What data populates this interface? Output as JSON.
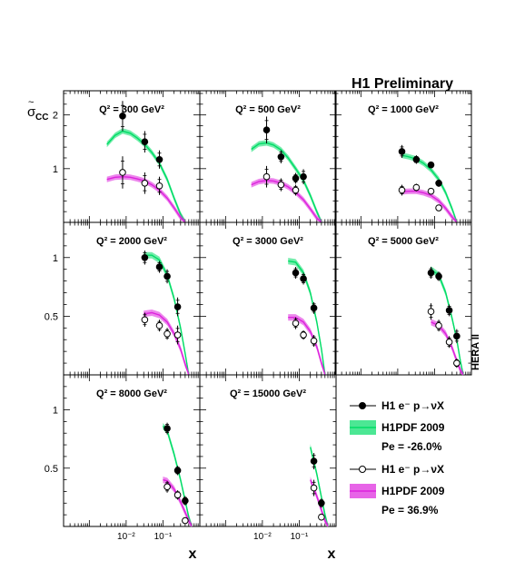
{
  "figure": {
    "banner": "H1 Preliminary",
    "side_label": "HERA II",
    "ylabel_main": "σ",
    "ylabel_tilde": "~",
    "ylabel_sub": "CC",
    "xlabel": "x"
  },
  "legend": {
    "items": [
      {
        "type": "data",
        "style": "filled",
        "text": "H1 e⁻ p→νX"
      },
      {
        "type": "band",
        "color": "#00dd66",
        "text": "H1PDF 2009"
      },
      {
        "type": "note",
        "text": "Pe = -26.0%"
      },
      {
        "type": "data",
        "style": "open",
        "text": "H1 e⁻ p→νX"
      },
      {
        "type": "band",
        "color": "#dd22dd",
        "text": "H1PDF 2009"
      },
      {
        "type": "note",
        "text": "Pe = 36.9%"
      }
    ]
  },
  "chart_data": {
    "type": "scatter",
    "xscale": "log",
    "x_range": [
      0.0002,
      1
    ],
    "y_ranges": {
      "row1": [
        0,
        2.45
      ],
      "row2": [
        0,
        1.3
      ],
      "row3": [
        0,
        1.3
      ]
    },
    "x_tick_labels": [
      "10⁻²",
      "10⁻¹",
      "10⁻²",
      "10⁻¹"
    ],
    "y_tick_labels": {
      "row1": [
        "1",
        "2"
      ],
      "row2": [
        "0.5",
        "1"
      ],
      "row3": [
        "0.5",
        "1"
      ]
    },
    "colors": {
      "neg": "#00dd66",
      "pos": "#dd22dd"
    },
    "panels": [
      {
        "label": "Q² = 300 GeV²",
        "row": 0,
        "col": 0,
        "neg_points": [
          [
            0.008,
            1.98,
            0.28
          ],
          [
            0.032,
            1.5,
            0.2
          ],
          [
            0.08,
            1.17,
            0.17
          ]
        ],
        "pos_points": [
          [
            0.008,
            0.93,
            0.3
          ],
          [
            0.032,
            0.73,
            0.2
          ],
          [
            0.08,
            0.68,
            0.17
          ]
        ],
        "neg_curve": [
          [
            0.003,
            1.45
          ],
          [
            0.005,
            1.62
          ],
          [
            0.008,
            1.7
          ],
          [
            0.013,
            1.66
          ],
          [
            0.02,
            1.57
          ],
          [
            0.032,
            1.45
          ],
          [
            0.05,
            1.3
          ],
          [
            0.08,
            1.1
          ],
          [
            0.13,
            0.8
          ],
          [
            0.2,
            0.45
          ],
          [
            0.3,
            0.15
          ],
          [
            0.4,
            0.0
          ]
        ],
        "pos_curve": [
          [
            0.003,
            0.8
          ],
          [
            0.005,
            0.84
          ],
          [
            0.008,
            0.85
          ],
          [
            0.013,
            0.84
          ],
          [
            0.02,
            0.81
          ],
          [
            0.032,
            0.77
          ],
          [
            0.05,
            0.7
          ],
          [
            0.08,
            0.6
          ],
          [
            0.13,
            0.45
          ],
          [
            0.2,
            0.27
          ],
          [
            0.3,
            0.09
          ],
          [
            0.4,
            0.0
          ]
        ]
      },
      {
        "label": "Q² = 500 GeV²",
        "row": 0,
        "col": 1,
        "neg_points": [
          [
            0.013,
            1.72,
            0.25
          ],
          [
            0.032,
            1.22,
            0.12
          ],
          [
            0.08,
            0.82,
            0.1
          ],
          [
            0.13,
            0.85,
            0.14
          ]
        ],
        "pos_points": [
          [
            0.013,
            0.85,
            0.2
          ],
          [
            0.032,
            0.7,
            0.12
          ],
          [
            0.08,
            0.6,
            0.1
          ]
        ],
        "neg_curve": [
          [
            0.005,
            1.36
          ],
          [
            0.008,
            1.46
          ],
          [
            0.013,
            1.48
          ],
          [
            0.02,
            1.44
          ],
          [
            0.032,
            1.35
          ],
          [
            0.05,
            1.2
          ],
          [
            0.08,
            1.0
          ],
          [
            0.13,
            0.78
          ],
          [
            0.2,
            0.5
          ],
          [
            0.3,
            0.2
          ],
          [
            0.4,
            0.0
          ]
        ],
        "pos_curve": [
          [
            0.005,
            0.7
          ],
          [
            0.008,
            0.76
          ],
          [
            0.013,
            0.78
          ],
          [
            0.02,
            0.77
          ],
          [
            0.032,
            0.73
          ],
          [
            0.05,
            0.66
          ],
          [
            0.08,
            0.56
          ],
          [
            0.13,
            0.42
          ],
          [
            0.2,
            0.25
          ],
          [
            0.3,
            0.08
          ],
          [
            0.4,
            0.0
          ]
        ]
      },
      {
        "label": "Q² = 1000 GeV²",
        "row": 0,
        "col": 2,
        "neg_points": [
          [
            0.013,
            1.32,
            0.12
          ],
          [
            0.032,
            1.17,
            0.08
          ],
          [
            0.08,
            1.07,
            0.06
          ],
          [
            0.13,
            0.73,
            0.07
          ]
        ],
        "pos_points": [
          [
            0.013,
            0.6,
            0.1
          ],
          [
            0.032,
            0.65,
            0.07
          ],
          [
            0.08,
            0.58,
            0.05
          ],
          [
            0.13,
            0.27,
            0.05
          ]
        ],
        "neg_curve": [
          [
            0.013,
            1.25
          ],
          [
            0.02,
            1.22
          ],
          [
            0.032,
            1.18
          ],
          [
            0.05,
            1.1
          ],
          [
            0.08,
            0.98
          ],
          [
            0.13,
            0.8
          ],
          [
            0.2,
            0.55
          ],
          [
            0.3,
            0.25
          ],
          [
            0.4,
            0.0
          ]
        ],
        "pos_curve": [
          [
            0.013,
            0.57
          ],
          [
            0.02,
            0.58
          ],
          [
            0.032,
            0.58
          ],
          [
            0.05,
            0.55
          ],
          [
            0.08,
            0.5
          ],
          [
            0.13,
            0.4
          ],
          [
            0.2,
            0.26
          ],
          [
            0.3,
            0.1
          ],
          [
            0.4,
            0.0
          ]
        ]
      },
      {
        "label": "Q² = 2000 GeV²",
        "row": 1,
        "col": 0,
        "neg_points": [
          [
            0.032,
            1.0,
            0.06
          ],
          [
            0.08,
            0.92,
            0.05
          ],
          [
            0.13,
            0.84,
            0.06
          ],
          [
            0.25,
            0.58,
            0.08
          ]
        ],
        "pos_points": [
          [
            0.032,
            0.47,
            0.06
          ],
          [
            0.08,
            0.42,
            0.05
          ],
          [
            0.13,
            0.35,
            0.05
          ],
          [
            0.25,
            0.34,
            0.08
          ]
        ],
        "neg_curve": [
          [
            0.03,
            1.02
          ],
          [
            0.05,
            1.02
          ],
          [
            0.08,
            0.98
          ],
          [
            0.13,
            0.85
          ],
          [
            0.2,
            0.65
          ],
          [
            0.3,
            0.4
          ],
          [
            0.4,
            0.18
          ],
          [
            0.5,
            0.0
          ]
        ],
        "pos_curve": [
          [
            0.03,
            0.52
          ],
          [
            0.05,
            0.53
          ],
          [
            0.08,
            0.51
          ],
          [
            0.13,
            0.45
          ],
          [
            0.2,
            0.35
          ],
          [
            0.3,
            0.22
          ],
          [
            0.4,
            0.09
          ],
          [
            0.5,
            0.0
          ]
        ]
      },
      {
        "label": "Q² = 3000 GeV²",
        "row": 1,
        "col": 1,
        "neg_points": [
          [
            0.08,
            0.87,
            0.05
          ],
          [
            0.13,
            0.82,
            0.05
          ],
          [
            0.25,
            0.57,
            0.05
          ]
        ],
        "pos_points": [
          [
            0.08,
            0.44,
            0.05
          ],
          [
            0.13,
            0.34,
            0.04
          ],
          [
            0.25,
            0.29,
            0.05
          ]
        ],
        "neg_curve": [
          [
            0.05,
            0.97
          ],
          [
            0.08,
            0.96
          ],
          [
            0.13,
            0.87
          ],
          [
            0.2,
            0.7
          ],
          [
            0.3,
            0.45
          ],
          [
            0.4,
            0.22
          ],
          [
            0.5,
            0.0
          ]
        ],
        "pos_curve": [
          [
            0.05,
            0.49
          ],
          [
            0.08,
            0.49
          ],
          [
            0.13,
            0.45
          ],
          [
            0.2,
            0.37
          ],
          [
            0.3,
            0.24
          ],
          [
            0.4,
            0.1
          ],
          [
            0.5,
            0.0
          ]
        ]
      },
      {
        "label": "Q² = 5000 GeV²",
        "row": 1,
        "col": 2,
        "neg_points": [
          [
            0.08,
            0.87,
            0.05
          ],
          [
            0.13,
            0.84,
            0.04
          ],
          [
            0.25,
            0.55,
            0.05
          ],
          [
            0.4,
            0.33,
            0.06
          ]
        ],
        "pos_points": [
          [
            0.08,
            0.54,
            0.07
          ],
          [
            0.13,
            0.42,
            0.05
          ],
          [
            0.25,
            0.28,
            0.05
          ],
          [
            0.4,
            0.1,
            0.04
          ]
        ],
        "neg_curve": [
          [
            0.08,
            0.9
          ],
          [
            0.13,
            0.85
          ],
          [
            0.2,
            0.7
          ],
          [
            0.3,
            0.48
          ],
          [
            0.4,
            0.3
          ],
          [
            0.5,
            0.12
          ],
          [
            0.6,
            0.0
          ]
        ],
        "pos_curve": [
          [
            0.08,
            0.45
          ],
          [
            0.13,
            0.42
          ],
          [
            0.2,
            0.35
          ],
          [
            0.3,
            0.23
          ],
          [
            0.4,
            0.12
          ],
          [
            0.5,
            0.04
          ],
          [
            0.6,
            0.0
          ]
        ]
      },
      {
        "label": "Q² = 8000 GeV²",
        "row": 2,
        "col": 0,
        "neg_points": [
          [
            0.13,
            0.84,
            0.05
          ],
          [
            0.25,
            0.48,
            0.04
          ],
          [
            0.4,
            0.22,
            0.04
          ]
        ],
        "pos_points": [
          [
            0.13,
            0.34,
            0.05
          ],
          [
            0.25,
            0.27,
            0.04
          ],
          [
            0.4,
            0.05,
            0.02
          ]
        ],
        "neg_curve": [
          [
            0.1,
            0.86
          ],
          [
            0.13,
            0.82
          ],
          [
            0.2,
            0.62
          ],
          [
            0.3,
            0.4
          ],
          [
            0.4,
            0.22
          ],
          [
            0.5,
            0.08
          ],
          [
            0.6,
            0.0
          ]
        ],
        "pos_curve": [
          [
            0.1,
            0.4
          ],
          [
            0.13,
            0.39
          ],
          [
            0.2,
            0.32
          ],
          [
            0.3,
            0.21
          ],
          [
            0.4,
            0.12
          ],
          [
            0.5,
            0.05
          ],
          [
            0.6,
            0.0
          ]
        ]
      },
      {
        "label": "Q² = 15000 GeV²",
        "row": 2,
        "col": 1,
        "neg_points": [
          [
            0.25,
            0.56,
            0.07
          ],
          [
            0.4,
            0.2,
            0.04
          ]
        ],
        "pos_points": [
          [
            0.25,
            0.33,
            0.07
          ],
          [
            0.4,
            0.08,
            0.03
          ]
        ],
        "neg_curve": [
          [
            0.2,
            0.68
          ],
          [
            0.3,
            0.45
          ],
          [
            0.4,
            0.25
          ],
          [
            0.5,
            0.1
          ],
          [
            0.6,
            0.0
          ]
        ],
        "pos_curve": [
          [
            0.2,
            0.4
          ],
          [
            0.3,
            0.26
          ],
          [
            0.4,
            0.14
          ],
          [
            0.5,
            0.05
          ],
          [
            0.6,
            0.0
          ]
        ]
      }
    ]
  }
}
